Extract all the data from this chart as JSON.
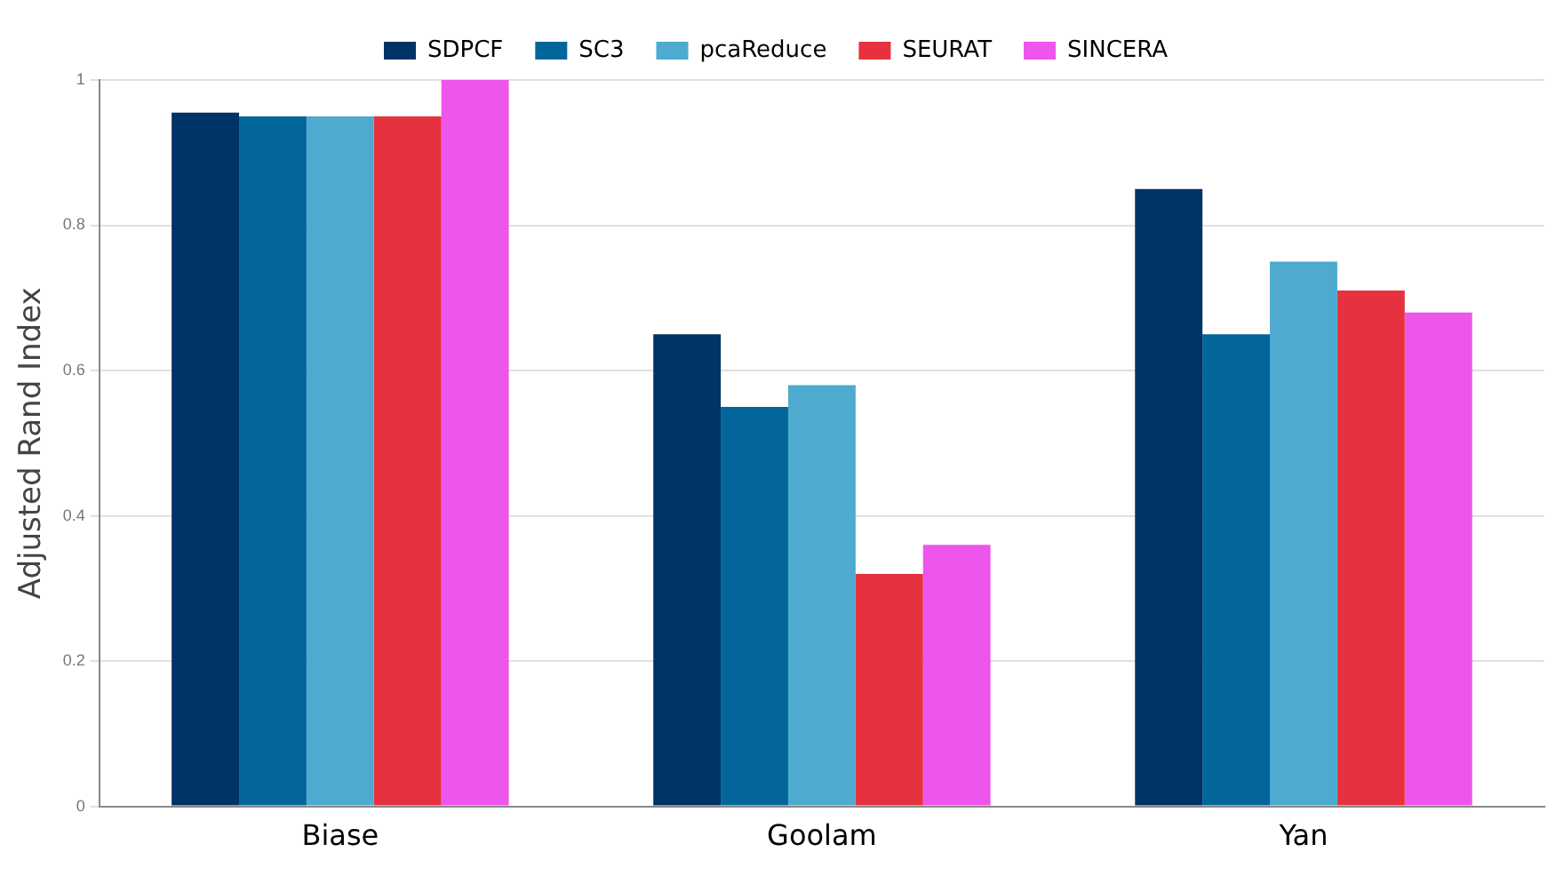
{
  "chart_data": {
    "type": "bar",
    "ylabel": "Adjusted Rand Index",
    "categories": [
      "Biase",
      "Goolam",
      "Yan"
    ],
    "series": [
      {
        "name": "SDPCF",
        "color": "#003366",
        "values": [
          0.955,
          0.65,
          0.85
        ]
      },
      {
        "name": "SC3",
        "color": "#02669b",
        "values": [
          0.95,
          0.55,
          0.65
        ]
      },
      {
        "name": "pcaReduce",
        "color": "#4eaacf",
        "values": [
          0.95,
          0.58,
          0.75
        ]
      },
      {
        "name": "SEURAT",
        "color": "#e5323e",
        "values": [
          0.95,
          0.32,
          0.71
        ]
      },
      {
        "name": "SINCERA",
        "color": "#ee55ea",
        "values": [
          1,
          0.36,
          0.68
        ]
      }
    ],
    "ylim": [
      0,
      1
    ],
    "yticks": [
      0,
      0.2,
      0.4,
      0.6,
      0.8,
      1
    ],
    "grid": "y",
    "legend": "top"
  }
}
